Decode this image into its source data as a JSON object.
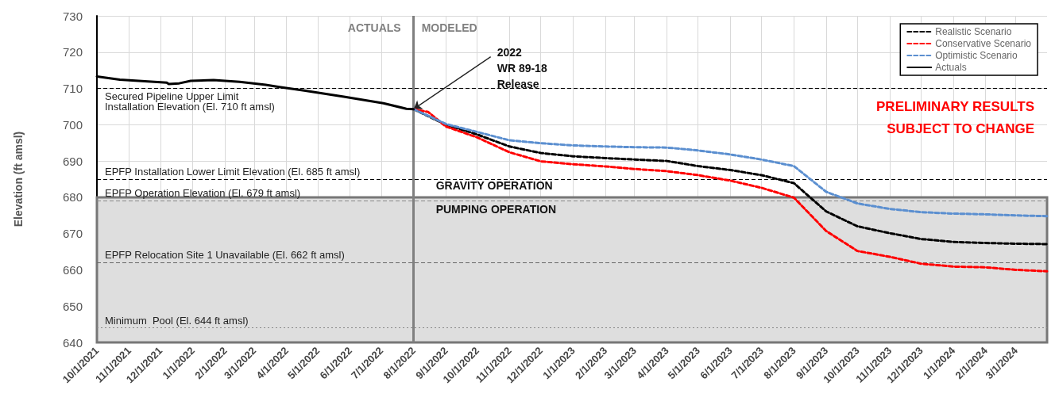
{
  "chart_data": {
    "type": "line",
    "ylabel": "Elevation (ft amsl)",
    "xlim": [
      "2021-10-01",
      "2024-03-31"
    ],
    "xticks": [
      {
        "value": "2021-10-01",
        "label": "10/1/2021"
      },
      {
        "value": "2021-11-01",
        "label": "11/1/2021"
      },
      {
        "value": "2021-12-01",
        "label": "12/1/2021"
      },
      {
        "value": "2022-01-01",
        "label": "1/1/2022"
      },
      {
        "value": "2022-02-01",
        "label": "2/1/2022"
      },
      {
        "value": "2022-03-01",
        "label": "3/1/2022"
      },
      {
        "value": "2022-04-01",
        "label": "4/1/2022"
      },
      {
        "value": "2022-05-01",
        "label": "5/1/2022"
      },
      {
        "value": "2022-06-01",
        "label": "6/1/2022"
      },
      {
        "value": "2022-07-01",
        "label": "7/1/2022"
      },
      {
        "value": "2022-08-01",
        "label": "8/1/2022"
      },
      {
        "value": "2022-09-01",
        "label": "9/1/2022"
      },
      {
        "value": "2022-10-01",
        "label": "10/1/2022"
      },
      {
        "value": "2022-11-01",
        "label": "11/1/2022"
      },
      {
        "value": "2022-12-01",
        "label": "12/1/2022"
      },
      {
        "value": "2023-01-01",
        "label": "1/1/2023"
      },
      {
        "value": "2023-02-01",
        "label": "2/1/2023"
      },
      {
        "value": "2023-03-01",
        "label": "3/1/2023"
      },
      {
        "value": "2023-04-01",
        "label": "4/1/2023"
      },
      {
        "value": "2023-05-01",
        "label": "5/1/2023"
      },
      {
        "value": "2023-06-01",
        "label": "6/1/2023"
      },
      {
        "value": "2023-07-01",
        "label": "7/1/2023"
      },
      {
        "value": "2023-08-01",
        "label": "8/1/2023"
      },
      {
        "value": "2023-09-01",
        "label": "9/1/2023"
      },
      {
        "value": "2023-10-01",
        "label": "10/1/2023"
      },
      {
        "value": "2023-11-01",
        "label": "11/1/2023"
      },
      {
        "value": "2023-12-01",
        "label": "12/1/2023"
      },
      {
        "value": "2024-01-01",
        "label": "1/1/2024"
      },
      {
        "value": "2024-02-01",
        "label": "2/1/2024"
      },
      {
        "value": "2024-03-01",
        "label": "3/1/2024"
      }
    ],
    "ylim": [
      640,
      730
    ],
    "yticks": [
      640,
      650,
      660,
      670,
      680,
      690,
      700,
      710,
      720,
      730
    ],
    "grid": true,
    "legend": "top right",
    "marker": "none",
    "series": [
      {
        "name": "Realistic Scenario",
        "color": "#000000",
        "line_style": "dashed",
        "x": [
          "2022-08-01",
          "2022-09-01",
          "2022-10-01",
          "2022-11-01",
          "2022-12-01",
          "2023-01-01",
          "2023-02-01",
          "2023-03-01",
          "2023-04-01",
          "2023-05-01",
          "2023-06-01",
          "2023-07-01",
          "2023-08-01",
          "2023-09-01",
          "2023-10-01",
          "2023-11-01",
          "2023-12-01",
          "2024-01-01",
          "2024-02-01",
          "2024-03-01",
          "2024-03-31"
        ],
        "values": [
          704.3,
          700,
          697.3,
          694,
          692.2,
          691.3,
          690.8,
          690.4,
          690,
          688.6,
          687.5,
          686.1,
          683.9,
          676.1,
          672,
          670.1,
          668.5,
          667.7,
          667.4,
          667.2,
          667.1
        ]
      },
      {
        "name": "Conservative Scenario",
        "color": "#ff0000",
        "line_style": "dashed",
        "x": [
          "2022-08-01",
          "2022-08-15",
          "2022-09-01",
          "2022-10-01",
          "2022-11-01",
          "2022-12-01",
          "2023-01-01",
          "2023-02-01",
          "2023-03-01",
          "2023-04-01",
          "2023-05-01",
          "2023-06-01",
          "2023-07-01",
          "2023-08-01",
          "2023-09-01",
          "2023-10-01",
          "2023-11-01",
          "2023-12-01",
          "2024-01-01",
          "2024-02-01",
          "2024-03-01",
          "2024-03-31"
        ],
        "values": [
          704.3,
          703.5,
          699.5,
          696.5,
          692.4,
          689.9,
          689.1,
          688.5,
          687.8,
          687.2,
          686.1,
          684.6,
          682.6,
          679.9,
          670.7,
          665.2,
          663.6,
          661.7,
          660.9,
          660.7,
          660,
          659.6
        ]
      },
      {
        "name": "Optimistic Scenario",
        "color": "#5b8fd0",
        "line_style": "dashed",
        "x": [
          "2022-08-01",
          "2022-09-01",
          "2022-10-01",
          "2022-11-01",
          "2022-12-01",
          "2023-01-01",
          "2023-02-01",
          "2023-03-01",
          "2023-04-01",
          "2023-05-01",
          "2023-06-01",
          "2023-07-01",
          "2023-08-01",
          "2023-09-01",
          "2023-10-01",
          "2023-11-01",
          "2023-12-01",
          "2024-01-01",
          "2024-02-01",
          "2024-03-01",
          "2024-03-31"
        ],
        "values": [
          704.3,
          700.2,
          698,
          695.7,
          694.9,
          694.3,
          694,
          693.8,
          693.7,
          692.9,
          691.8,
          690.4,
          688.6,
          681.5,
          678.3,
          676.8,
          675.9,
          675.5,
          675.3,
          675,
          674.8
        ]
      },
      {
        "name": "Actuals",
        "color": "#000000",
        "line_style": "solid",
        "x": [
          "2021-10-01",
          "2021-10-23",
          "2021-12-07",
          "2021-12-09",
          "2021-12-19",
          "2021-12-30",
          "2022-01-21",
          "2022-02-15",
          "2022-03-12",
          "2022-03-25",
          "2022-04-18",
          "2022-05-26",
          "2022-07-03",
          "2022-07-25",
          "2022-08-01"
        ],
        "values": [
          713.3,
          712.4,
          711.6,
          711.2,
          711.4,
          712.1,
          712.3,
          711.8,
          711,
          710.4,
          709.4,
          707.7,
          705.9,
          704.4,
          704.3
        ]
      }
    ],
    "ref_lines": [
      {
        "axis": "y",
        "value": 710,
        "label": "Secured Pipeline Upper Limit\nInstallation Elevation (El. 710 ft amsl)",
        "color": "#000000",
        "line_style": "dashed"
      },
      {
        "axis": "y",
        "value": 685,
        "label": "EPFP Installation Lower Limit Elevation (El. 685 ft amsl)",
        "color": "#000000",
        "line_style": "dashed"
      },
      {
        "axis": "y",
        "value": 679,
        "label": "EPFP Operation Elevation (El. 679 ft amsl)",
        "color": "#888888",
        "line_style": "dashed"
      },
      {
        "axis": "y",
        "value": 662,
        "label": "EPFP Relocation Site 1 Unavailable (El. 662 ft amsl)",
        "color": "#666666",
        "line_style": "dashed"
      },
      {
        "axis": "y",
        "value": 644,
        "label": "Minimum  Pool (El. 644 ft amsl)",
        "color": "#888888",
        "line_style": "dotted"
      },
      {
        "axis": "x",
        "value": "2022-08-01",
        "label": null,
        "color": "#808080",
        "line_style": "solid"
      }
    ],
    "bands": [
      {
        "axis": "y",
        "from": 640,
        "to": 680,
        "label": "PUMPING OPERATION",
        "color": "#dedede"
      }
    ],
    "annotations": [
      "ACTUALS",
      "MODELED",
      {
        "text": "2022\nWR 89-18\nRelease",
        "x": "2022-08-01",
        "y": 704.3
      },
      "GRAVITY OPERATION",
      "PRELIMINARY RESULTS\nSUBJECT TO CHANGE"
    ]
  }
}
